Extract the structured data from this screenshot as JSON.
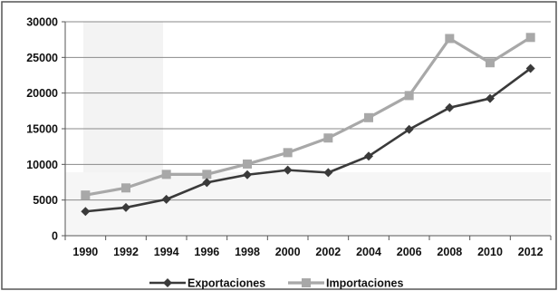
{
  "chart_data": {
    "type": "line",
    "title": "",
    "xlabel": "",
    "ylabel": "",
    "categories": [
      "1990",
      "1992",
      "1994",
      "1996",
      "1998",
      "2000",
      "2002",
      "2004",
      "2006",
      "2008",
      "2010",
      "2012"
    ],
    "ylim": [
      0,
      30000
    ],
    "yticks": [
      0,
      5000,
      10000,
      15000,
      20000,
      25000,
      30000
    ],
    "grid": true,
    "legend_position": "bottom",
    "series": [
      {
        "name": "Exportaciones",
        "color": "#3a3a3a",
        "marker": "diamond",
        "values": [
          3400,
          3950,
          5100,
          7450,
          8550,
          9200,
          8850,
          11150,
          14900,
          17950,
          19250,
          23450
        ]
      },
      {
        "name": "Importaciones",
        "color": "#a8a8a8",
        "marker": "square",
        "values": [
          5700,
          6700,
          8600,
          8600,
          10050,
          11650,
          13700,
          16550,
          19650,
          27650,
          24250,
          27800
        ]
      }
    ]
  }
}
